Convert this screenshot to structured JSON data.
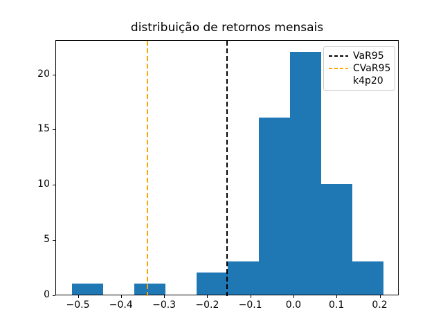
{
  "chart_data": {
    "type": "bar",
    "subtype": "histogram",
    "title": "distribuição de retornos mensais",
    "xlabel": "",
    "ylabel": "",
    "bin_edges": [
      -0.516,
      -0.4436,
      -0.3712,
      -0.2988,
      -0.2264,
      -0.154,
      -0.0816,
      -0.0092,
      0.0632,
      0.1356,
      0.208
    ],
    "counts": [
      1,
      0,
      1,
      0,
      2,
      3,
      16,
      22,
      10,
      3
    ],
    "bar_color": "#1f77b4",
    "xlim": [
      -0.5522,
      0.2442
    ],
    "ylim": [
      0,
      23.1
    ],
    "grid": false,
    "x_ticks": [
      -0.5,
      -0.4,
      -0.3,
      -0.2,
      -0.1,
      0.0,
      0.1,
      0.2
    ],
    "x_tick_labels": [
      "−0.5",
      "−0.4",
      "−0.3",
      "−0.2",
      "−0.1",
      "0.0",
      "0.1",
      "0.2"
    ],
    "y_ticks": [
      0,
      5,
      10,
      15,
      20
    ],
    "y_tick_labels": [
      "0",
      "5",
      "10",
      "15",
      "20"
    ],
    "vlines": [
      {
        "name": "VaR95",
        "x": -0.1555,
        "color": "#000000",
        "style": "dashed"
      },
      {
        "name": "CVaR95",
        "x": -0.34,
        "color": "#ffa500",
        "style": "dashed"
      }
    ],
    "legend": {
      "position": "upper right",
      "entries": [
        {
          "label": "VaR95",
          "color": "#000000",
          "line": "dashed"
        },
        {
          "label": "CVaR95",
          "color": "#ffa500",
          "line": "dashed"
        },
        {
          "label": "k4p20",
          "color": null,
          "line": "none"
        }
      ]
    }
  }
}
